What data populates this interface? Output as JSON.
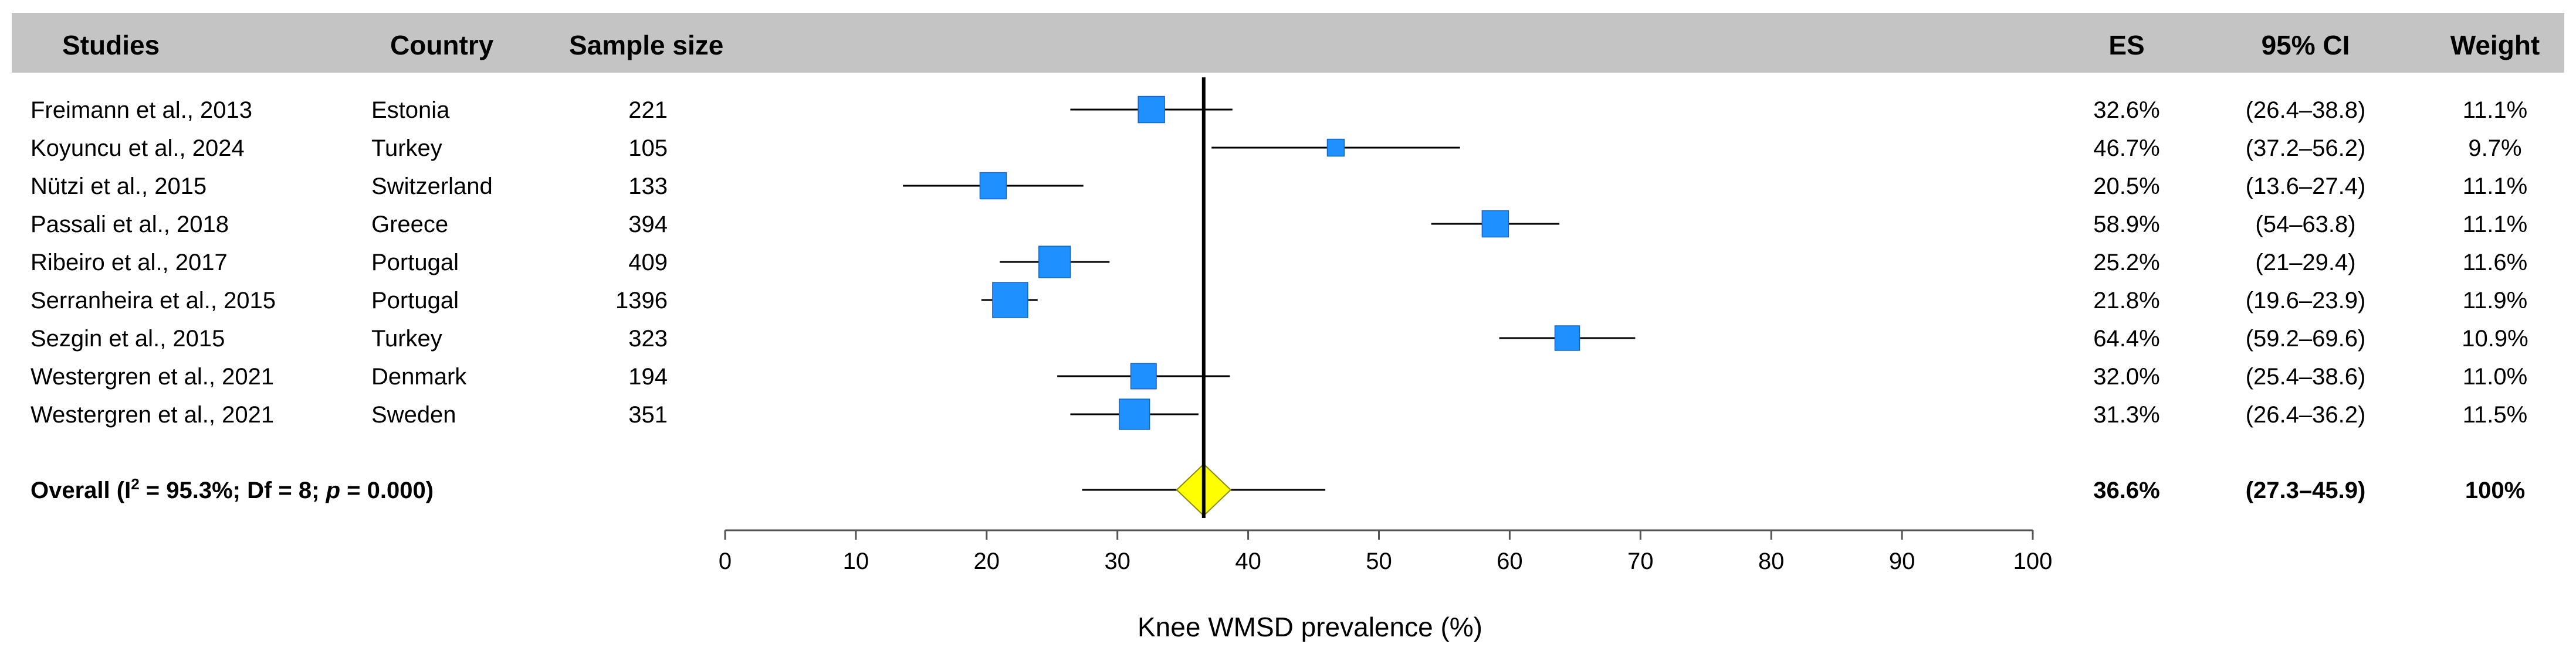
{
  "headers": {
    "studies": "Studies",
    "country": "Country",
    "sample_size": "Sample size",
    "es": "ES",
    "ci": "95% CI",
    "weight": "Weight"
  },
  "chart_data": {
    "type": "forest",
    "xlabel": "Knee WMSD prevalence (%)",
    "xlim": [
      0,
      100
    ],
    "xticks": [
      0,
      10,
      20,
      30,
      40,
      50,
      60,
      70,
      80,
      90,
      100
    ],
    "reference_line": 36.6,
    "colors": {
      "header_band": "#c4c4c4",
      "study_marker": "#1e90ff",
      "overall_diamond": "#ffff00",
      "line": "#000000"
    },
    "studies": [
      {
        "study": "Freimann et al., 2013",
        "country": "Estonia",
        "n": "221",
        "es": 32.6,
        "lo": 26.4,
        "hi": 38.8,
        "es_label": "32.6%",
        "ci_label": "(26.4–38.8)",
        "weight": 11.1,
        "weight_label": "11.1%"
      },
      {
        "study": "Koyuncu et al., 2024",
        "country": "Turkey",
        "n": "105",
        "es": 46.7,
        "lo": 37.2,
        "hi": 56.2,
        "es_label": "46.7%",
        "ci_label": "(37.2–56.2)",
        "weight": 9.7,
        "weight_label": "9.7%"
      },
      {
        "study": "Nützi et al., 2015",
        "country": "Switzerland",
        "n": "133",
        "es": 20.5,
        "lo": 13.6,
        "hi": 27.4,
        "es_label": "20.5%",
        "ci_label": "(13.6–27.4)",
        "weight": 11.1,
        "weight_label": "11.1%"
      },
      {
        "study": "Passali et al., 2018",
        "country": "Greece",
        "n": "394",
        "es": 58.9,
        "lo": 54.0,
        "hi": 63.8,
        "es_label": "58.9%",
        "ci_label": "(54–63.8)",
        "weight": 11.1,
        "weight_label": "11.1%"
      },
      {
        "study": "Ribeiro et al., 2017",
        "country": "Portugal",
        "n": "409",
        "es": 25.2,
        "lo": 21.0,
        "hi": 29.4,
        "es_label": "25.2%",
        "ci_label": "(21–29.4)",
        "weight": 11.6,
        "weight_label": "11.6%"
      },
      {
        "study": "Serranheira et al., 2015",
        "country": "Portugal",
        "n": "1396",
        "es": 21.8,
        "lo": 19.6,
        "hi": 23.9,
        "es_label": "21.8%",
        "ci_label": "(19.6–23.9)",
        "weight": 11.9,
        "weight_label": "11.9%"
      },
      {
        "study": "Sezgin et al., 2015",
        "country": "Turkey",
        "n": "323",
        "es": 64.4,
        "lo": 59.2,
        "hi": 69.6,
        "es_label": "64.4%",
        "ci_label": "(59.2–69.6)",
        "weight": 10.9,
        "weight_label": "10.9%"
      },
      {
        "study": "Westergren et al., 2021",
        "country": "Denmark",
        "n": "194",
        "es": 32.0,
        "lo": 25.4,
        "hi": 38.6,
        "es_label": "32.0%",
        "ci_label": "(25.4–38.6)",
        "weight": 11.0,
        "weight_label": "11.0%"
      },
      {
        "study": "Westergren et al., 2021",
        "country": "Sweden",
        "n": "351",
        "es": 31.3,
        "lo": 26.4,
        "hi": 36.2,
        "es_label": "31.3%",
        "ci_label": "(26.4–36.2)",
        "weight": 11.5,
        "weight_label": "11.5%"
      }
    ],
    "overall": {
      "label_prefix": "Overall (I",
      "label_sup": "2",
      "label_mid": " = 95.3%;  Df = 8; ",
      "label_p": "p",
      "label_end": " = 0.000)",
      "es": 36.6,
      "lo": 27.3,
      "hi": 45.9,
      "es_label": "36.6%",
      "ci_label": "(27.3–45.9)",
      "weight_label": "100%"
    }
  }
}
